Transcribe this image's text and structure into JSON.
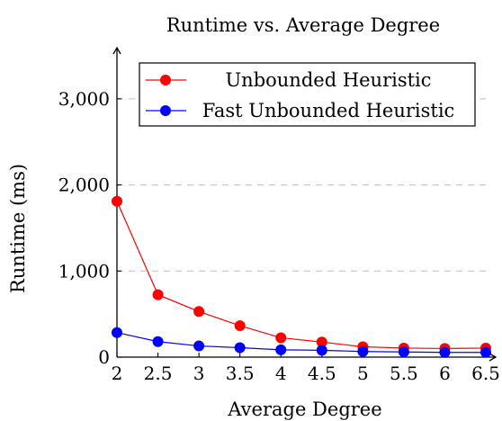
{
  "chart_data": {
    "type": "line",
    "title": "Runtime vs. Average Degree",
    "xlabel": "Average Degree",
    "ylabel": "Runtime (ms)",
    "x": [
      2,
      2.5,
      3,
      3.5,
      4,
      4.5,
      5,
      5.5,
      6,
      6.5
    ],
    "x_tick_labels": [
      "2",
      "2.5",
      "3",
      "3.5",
      "4",
      "4.5",
      "5",
      "5.5",
      "6",
      "6.5"
    ],
    "xlim": [
      2,
      6.5
    ],
    "ylim": [
      0,
      3500
    ],
    "y_ticks": [
      0,
      1000,
      2000,
      3000
    ],
    "y_tick_labels": [
      "0",
      "1,000",
      "2,000",
      "3,000"
    ],
    "grid": "horizontal dashed",
    "legend_position": "top-right",
    "series": [
      {
        "name": "Unbounded Heuristic",
        "color": "#ff0000",
        "values": [
          1810,
          725,
          530,
          365,
          225,
          175,
          120,
          105,
          100,
          105
        ]
      },
      {
        "name": "Fast Unbounded Heuristic",
        "color": "#0000ff",
        "values": [
          285,
          180,
          130,
          110,
          85,
          80,
          65,
          60,
          55,
          55
        ]
      }
    ]
  }
}
